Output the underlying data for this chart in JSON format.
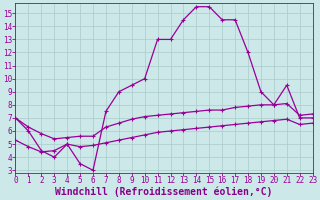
{
  "line1_x": [
    0,
    1,
    2,
    3,
    4,
    5,
    6,
    7,
    8,
    9,
    10,
    11,
    12,
    13,
    14,
    15,
    16,
    17,
    18,
    19,
    20,
    21,
    22,
    23
  ],
  "line1_y": [
    7.0,
    6.0,
    4.5,
    4.0,
    5.0,
    3.5,
    3.0,
    7.5,
    9.0,
    9.5,
    10.0,
    13.0,
    13.0,
    14.5,
    15.5,
    15.5,
    14.5,
    14.5,
    12.0,
    9.0,
    8.0,
    9.5,
    7.0,
    7.0
  ],
  "line2_x": [
    0,
    1,
    2,
    3,
    4,
    5,
    6,
    7,
    8,
    9,
    10,
    11,
    12,
    13,
    14,
    15,
    16,
    17,
    18,
    19,
    20,
    21,
    22,
    23
  ],
  "line2_y": [
    7.0,
    6.3,
    5.8,
    5.4,
    5.5,
    5.6,
    5.6,
    6.3,
    6.6,
    6.9,
    7.1,
    7.2,
    7.3,
    7.4,
    7.5,
    7.6,
    7.6,
    7.8,
    7.9,
    8.0,
    8.0,
    8.1,
    7.2,
    7.3
  ],
  "line3_x": [
    0,
    1,
    2,
    3,
    4,
    5,
    6,
    7,
    8,
    9,
    10,
    11,
    12,
    13,
    14,
    15,
    16,
    17,
    18,
    19,
    20,
    21,
    22,
    23
  ],
  "line3_y": [
    5.3,
    4.8,
    4.4,
    4.5,
    5.0,
    4.8,
    4.9,
    5.1,
    5.3,
    5.5,
    5.7,
    5.9,
    6.0,
    6.1,
    6.2,
    6.3,
    6.4,
    6.5,
    6.6,
    6.7,
    6.8,
    6.9,
    6.5,
    6.6
  ],
  "line_color": "#990099",
  "bg_color": "#cce8e8",
  "grid_color": "#aacccc",
  "xlabel": "Windchill (Refroidissement éolien,°C)",
  "xlabel_color": "#880088",
  "xlim": [
    0,
    23
  ],
  "ylim": [
    2.8,
    15.8
  ],
  "xticks": [
    0,
    1,
    2,
    3,
    4,
    5,
    6,
    7,
    8,
    9,
    10,
    11,
    12,
    13,
    14,
    15,
    16,
    17,
    18,
    19,
    20,
    21,
    22,
    23
  ],
  "yticks": [
    3,
    4,
    5,
    6,
    7,
    8,
    9,
    10,
    11,
    12,
    13,
    14,
    15
  ],
  "tick_fontsize": 5.5,
  "xlabel_fontsize": 7.0,
  "marker_size": 3,
  "line_width": 0.9
}
